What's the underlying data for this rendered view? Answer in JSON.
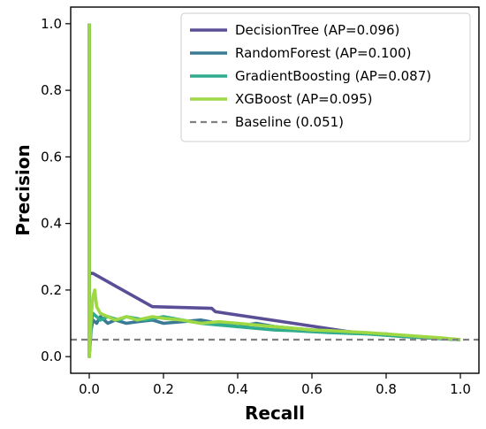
{
  "chart_data": {
    "type": "line",
    "xlabel": "Recall",
    "ylabel": "Precision",
    "xlim": [
      -0.05,
      1.05
    ],
    "ylim": [
      -0.05,
      1.05
    ],
    "xticks": [
      "0.0",
      "0.2",
      "0.4",
      "0.6",
      "0.8",
      "1.0"
    ],
    "yticks": [
      "0.0",
      "0.2",
      "0.4",
      "0.6",
      "0.8",
      "1.0"
    ],
    "grid": false,
    "legend_position": "top-right",
    "series": [
      {
        "name": "DecisionTree (AP=0.096)",
        "color": "#5a4e96",
        "x": [
          0.0,
          0.0,
          0.0,
          0.01,
          0.17,
          0.33,
          0.34,
          0.55,
          0.7,
          0.85,
          1.0
        ],
        "y": [
          1.0,
          0.0,
          0.25,
          0.25,
          0.15,
          0.145,
          0.135,
          0.1,
          0.075,
          0.06,
          0.051
        ]
      },
      {
        "name": "RandomForest (AP=0.100)",
        "color": "#3b7a94",
        "x": [
          0.0,
          0.0,
          0.005,
          0.01,
          0.02,
          0.03,
          0.05,
          0.07,
          0.1,
          0.13,
          0.17,
          0.2,
          0.25,
          0.3,
          0.35,
          0.4,
          0.45,
          0.5,
          0.55,
          0.6,
          0.65,
          0.7,
          0.75,
          0.8,
          0.85,
          0.9,
          0.95,
          1.0
        ],
        "y": [
          1.0,
          0.0,
          0.08,
          0.11,
          0.1,
          0.12,
          0.1,
          0.11,
          0.1,
          0.105,
          0.11,
          0.1,
          0.105,
          0.11,
          0.1,
          0.09,
          0.1,
          0.09,
          0.085,
          0.08,
          0.078,
          0.075,
          0.07,
          0.068,
          0.062,
          0.058,
          0.054,
          0.051
        ]
      },
      {
        "name": "GradientBoosting (AP=0.087)",
        "color": "#2fab8e",
        "x": [
          0.0,
          0.0,
          0.005,
          0.01,
          0.02,
          0.03,
          0.05,
          0.08,
          0.1,
          0.15,
          0.2,
          0.25,
          0.3,
          0.35,
          0.4,
          0.45,
          0.5,
          0.55,
          0.6,
          0.65,
          0.7,
          0.75,
          0.8,
          0.85,
          0.9,
          0.95,
          1.0
        ],
        "y": [
          1.0,
          0.0,
          0.1,
          0.13,
          0.12,
          0.11,
          0.12,
          0.11,
          0.12,
          0.11,
          0.12,
          0.11,
          0.1,
          0.095,
          0.09,
          0.085,
          0.08,
          0.078,
          0.075,
          0.072,
          0.07,
          0.068,
          0.064,
          0.06,
          0.057,
          0.054,
          0.051
        ]
      },
      {
        "name": "XGBoost (AP=0.095)",
        "color": "#9fd845",
        "x": [
          0.0,
          0.0,
          0.005,
          0.01,
          0.015,
          0.02,
          0.03,
          0.05,
          0.07,
          0.1,
          0.13,
          0.17,
          0.2,
          0.25,
          0.3,
          0.35,
          0.4,
          0.45,
          0.5,
          0.55,
          0.6,
          0.65,
          0.7,
          0.75,
          0.8,
          0.85,
          0.9,
          0.95,
          1.0
        ],
        "y": [
          1.0,
          0.0,
          0.12,
          0.18,
          0.2,
          0.15,
          0.13,
          0.12,
          0.11,
          0.12,
          0.11,
          0.12,
          0.115,
          0.11,
          0.1,
          0.105,
          0.1,
          0.095,
          0.09,
          0.085,
          0.08,
          0.078,
          0.075,
          0.072,
          0.068,
          0.064,
          0.06,
          0.056,
          0.051
        ]
      }
    ],
    "baseline": {
      "name": "Baseline (0.051)",
      "value": 0.051,
      "color": "#808080",
      "style": "dashed"
    }
  }
}
